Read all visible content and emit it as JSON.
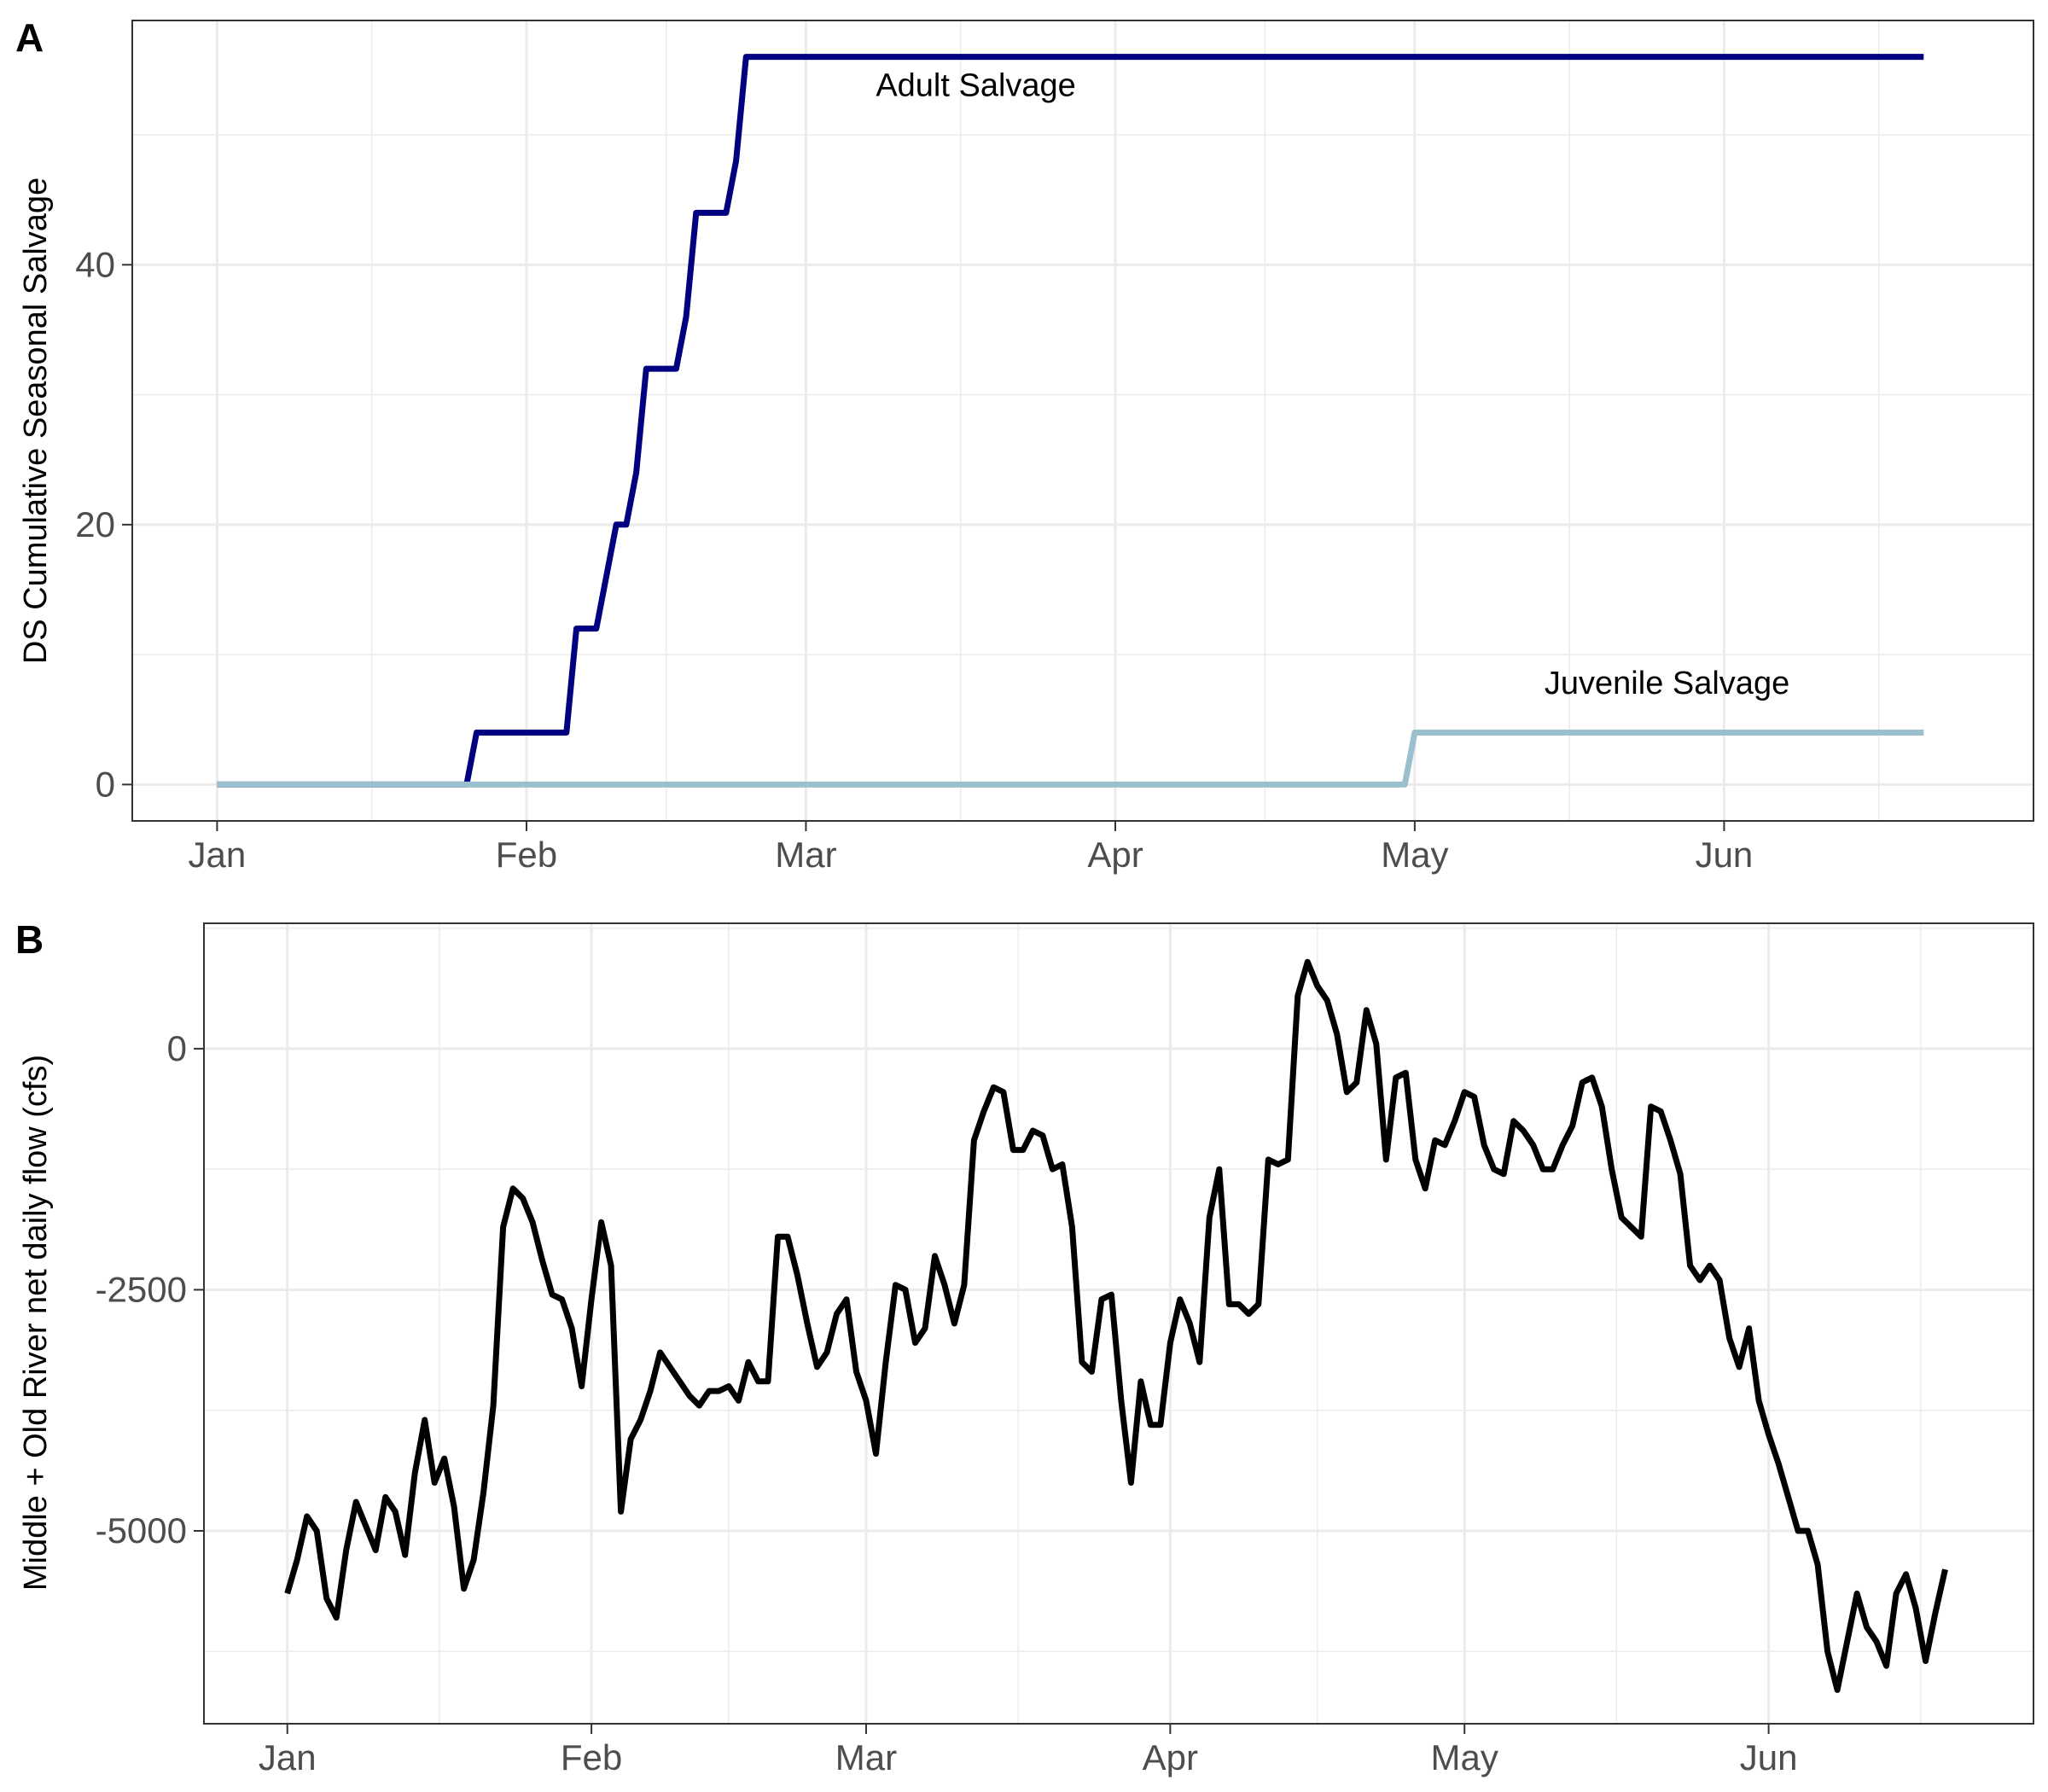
{
  "chart_data": [
    {
      "type": "line",
      "tag": "A",
      "ylabel": "DS Cumulative Seasonal Salvage",
      "xlabel": "",
      "x_ticks": [
        "Jan",
        "Feb",
        "Mar",
        "Apr",
        "May",
        "Jun"
      ],
      "x_tick_days": [
        1,
        32,
        60,
        91,
        121,
        152
      ],
      "xlim_days": [
        -7.5,
        183
      ],
      "y_ticks": [
        0,
        20,
        40
      ],
      "ylim": [
        -2.8,
        58.8
      ],
      "grid": true,
      "series": [
        {
          "name": "Adult Salvage",
          "color": "#000080",
          "label_at": [
            67,
            53
          ],
          "points": [
            [
              1,
              0
            ],
            [
              26,
              0
            ],
            [
              27,
              4
            ],
            [
              36,
              4
            ],
            [
              37,
              12
            ],
            [
              39,
              12
            ],
            [
              41,
              20
            ],
            [
              42,
              20
            ],
            [
              43,
              24
            ],
            [
              44,
              32
            ],
            [
              47,
              32
            ],
            [
              48,
              36
            ],
            [
              49,
              44
            ],
            [
              52,
              44
            ],
            [
              53,
              48
            ],
            [
              54,
              56
            ],
            [
              172,
              56
            ]
          ]
        },
        {
          "name": "Juvenile Salvage",
          "color": "#9ac0cd",
          "label_at": [
            134,
            7
          ],
          "points": [
            [
              1,
              0
            ],
            [
              120,
              0
            ],
            [
              121,
              4
            ],
            [
              172,
              4
            ]
          ]
        }
      ]
    },
    {
      "type": "line",
      "tag": "B",
      "ylabel": "Middle + Old River net daily flow (cfs)",
      "xlabel": "",
      "x_ticks": [
        "Jan",
        "Feb",
        "Mar",
        "Apr",
        "May",
        "Jun"
      ],
      "x_tick_days": [
        1,
        32,
        60,
        91,
        121,
        152
      ],
      "xlim_days": [
        -7.5,
        179
      ],
      "y_ticks": [
        -5000,
        -2500,
        0
      ],
      "ylim": [
        -7000,
        1300
      ],
      "grid": true,
      "series": [
        {
          "name": "",
          "color": "#000000",
          "x_start_day": 1,
          "values": [
            -5650,
            -5300,
            -4850,
            -5000,
            -5700,
            -5900,
            -5200,
            -4700,
            -4950,
            -5200,
            -4650,
            -4800,
            -5250,
            -4400,
            -3850,
            -4500,
            -4250,
            -4750,
            -5600,
            -5300,
            -4600,
            -3700,
            -1850,
            -1450,
            -1550,
            -1800,
            -2200,
            -2550,
            -2600,
            -2900,
            -3500,
            -2600,
            -1800,
            -2250,
            -4800,
            -4050,
            -3850,
            -3550,
            -3150,
            -3300,
            -3450,
            -3600,
            -3700,
            -3550,
            -3550,
            -3500,
            -3650,
            -3250,
            -3450,
            -3450,
            -1950,
            -1950,
            -2350,
            -2850,
            -3300,
            -3150,
            -2750,
            -2600,
            -3350,
            -3650,
            -4200,
            -3250,
            -2450,
            -2500,
            -3050,
            -2900,
            -2150,
            -2450,
            -2850,
            -2450,
            -950,
            -650,
            -400,
            -450,
            -1050,
            -1050,
            -850,
            -900,
            -1250,
            -1200,
            -1850,
            -3250,
            -3350,
            -2600,
            -2550,
            -3650,
            -4500,
            -3450,
            -3900,
            -3900,
            -3050,
            -2600,
            -2850,
            -3250,
            -1750,
            -1250,
            -2650,
            -2650,
            -2750,
            -2650,
            -1150,
            -1200,
            -1150,
            550,
            900,
            650,
            500,
            150,
            -450,
            -350,
            400,
            50,
            -1150,
            -300,
            -250,
            -1150,
            -1450,
            -950,
            -1000,
            -750,
            -450,
            -500,
            -1000,
            -1250,
            -1300,
            -750,
            -850,
            -1000,
            -1250,
            -1250,
            -1000,
            -800,
            -350,
            -300,
            -600,
            -1250,
            -1750,
            -1850,
            -1950,
            -600,
            -650,
            -950,
            -1300,
            -2250,
            -2400,
            -2250,
            -2400,
            -3000,
            -3300,
            -2900,
            -3650,
            -4000,
            -4300,
            -4650,
            -5000,
            -5000,
            -5350,
            -6250,
            -6650,
            -6150,
            -5650,
            -6000,
            -6150,
            -6400,
            -5650,
            -5450,
            -5800,
            -6350,
            -5850,
            -5400
          ]
        }
      ]
    }
  ]
}
